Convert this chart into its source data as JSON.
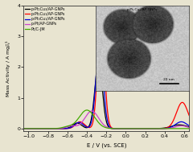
{
  "title": "",
  "xlabel": "E / V (vs. SCE)",
  "ylabel": "Mass Activity / A mg$^{-1}_{Pt}$",
  "xlim": [
    -1.05,
    0.65
  ],
  "ylim": [
    -0.08,
    4.0
  ],
  "xticks": [
    -1.0,
    -0.8,
    -0.6,
    -0.4,
    -0.2,
    0.0,
    0.2,
    0.4,
    0.6
  ],
  "yticks": [
    0,
    1,
    2,
    3,
    4
  ],
  "legend_labels": [
    "p-Pt₁Cu₃/AP-GNPs",
    "p-Pt₁Cu₁/AP-GNPs",
    "p-Pt₃Cu₁/AP-GNPs",
    "p-Pt/AP-GNPs",
    "Pt/C-JM"
  ],
  "legend_colors": [
    "#000000",
    "#ff0000",
    "#0000dd",
    "#cc44cc",
    "#44aa00"
  ],
  "background_color": "#e8e4d0",
  "inset_label": "p-Pt₁Cu₁/AP-GNPs",
  "inset_scale_label": "20 nm",
  "inset_bg_color": "#b8c8c0"
}
